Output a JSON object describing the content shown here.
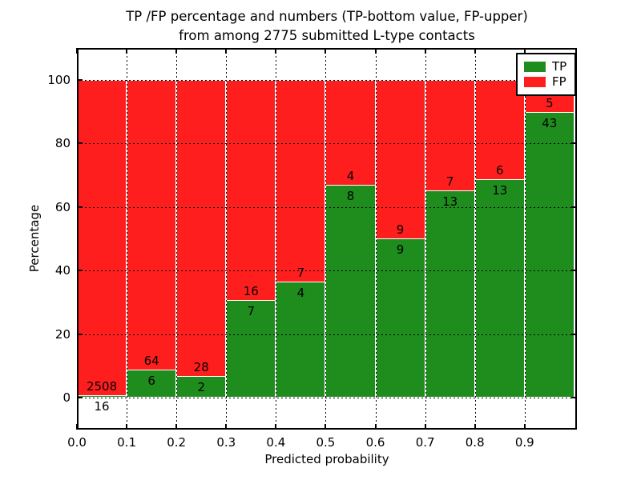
{
  "title": {
    "line1": "TP /FP percentage and numbers (TP-bottom value, FP-upper)",
    "line2": "from among 2775 submitted L-type contacts"
  },
  "chart_data": {
    "type": "bar",
    "stacked": true,
    "normalized_to_percent": 100,
    "title": "TP /FP percentage and numbers (TP-bottom value, FP-upper) from among 2775 submitted L-type contacts",
    "xlabel": "Predicted probability",
    "ylabel": "Percentage",
    "total_contacts": 2775,
    "categories": [
      "0.0-0.1",
      "0.1-0.2",
      "0.2-0.3",
      "0.3-0.4",
      "0.4-0.5",
      "0.5-0.6",
      "0.6-0.7",
      "0.7-0.8",
      "0.8-0.9",
      "0.9-1.0"
    ],
    "bin_start": 0.0,
    "bin_width": 0.1,
    "series": [
      {
        "name": "TP",
        "color": "#1E8D1E",
        "counts": [
          16,
          6,
          2,
          7,
          4,
          8,
          9,
          13,
          13,
          43
        ]
      },
      {
        "name": "FP",
        "color": "#FF1E1E",
        "counts": [
          2508,
          64,
          28,
          16,
          7,
          4,
          9,
          7,
          6,
          5
        ]
      }
    ],
    "tp_percent": [
      0.63,
      8.57,
      6.67,
      30.43,
      36.36,
      66.67,
      50.0,
      65.0,
      68.42,
      89.58
    ],
    "fp_percent": [
      99.37,
      91.43,
      93.33,
      69.57,
      63.64,
      33.33,
      50.0,
      35.0,
      31.58,
      10.42
    ],
    "xticks": [
      "0.0",
      "0.1",
      "0.2",
      "0.3",
      "0.4",
      "0.5",
      "0.6",
      "0.7",
      "0.8",
      "0.9"
    ],
    "yticks": [
      0,
      20,
      40,
      60,
      80,
      100
    ],
    "xlim": [
      0,
      1.005
    ],
    "ylim": [
      -10,
      110
    ],
    "grid": "dotted, drawn over bars",
    "bar_edge_color": "#FFFFFF",
    "legend": {
      "position": "upper right",
      "entries": [
        {
          "label": "TP",
          "color": "#1E8D1E"
        },
        {
          "label": "FP",
          "color": "#FF1E1E"
        }
      ]
    }
  }
}
